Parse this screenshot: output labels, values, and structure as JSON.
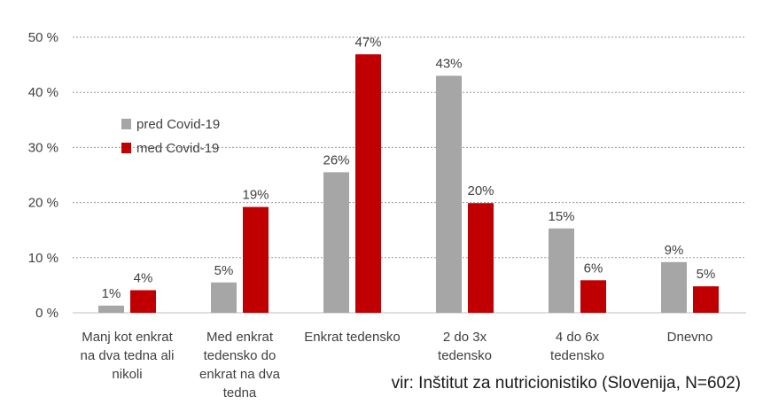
{
  "chart_data": {
    "type": "bar",
    "categories": [
      [
        "Manj kot enkrat",
        "na dva tedna ali",
        "nikoli"
      ],
      [
        "Med enkrat",
        "tedensko do",
        "enkrat na dva",
        "tedna"
      ],
      [
        "Enkrat tedensko"
      ],
      [
        "2 do 3x",
        "tedensko"
      ],
      [
        "4 do 6x",
        "tedensko"
      ],
      [
        "Dnevno"
      ]
    ],
    "series": [
      {
        "name": "pred Covid-19",
        "color": "#a6a6a6",
        "values": [
          1.3,
          5.5,
          25.5,
          43,
          15.3,
          9.2
        ],
        "labels": [
          "1%",
          "5%",
          "26%",
          "43%",
          "15%",
          "9%"
        ]
      },
      {
        "name": "med Covid-19",
        "color": "#c00000",
        "values": [
          4.1,
          19.2,
          46.9,
          19.9,
          5.9,
          4.8
        ],
        "labels": [
          "4%",
          "19%",
          "47%",
          "20%",
          "6%",
          "5%"
        ]
      }
    ],
    "yticks": [
      "0 %",
      "10 %",
      "20 %",
      "30 %",
      "40 %",
      "50 %"
    ],
    "ylim": [
      0,
      50
    ],
    "grid": true,
    "legend_position": "top-left",
    "source": "vir: Inštitut za nutricionistiko (Slovenija, N=602)"
  }
}
